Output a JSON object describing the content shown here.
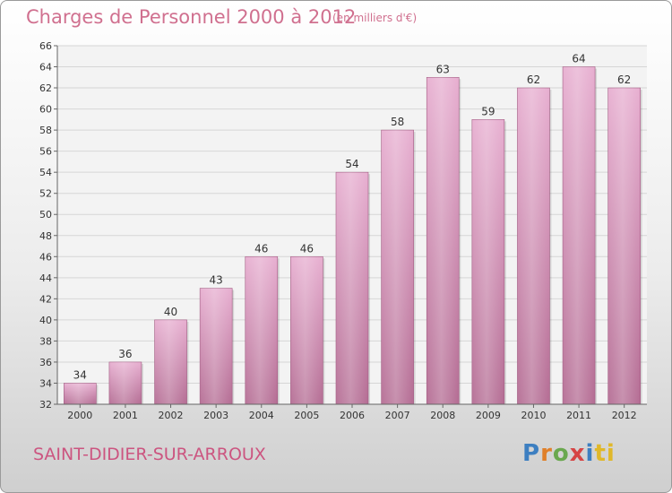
{
  "header": {
    "title": "Charges de Personnel 2000 à 2012",
    "subtitle": "(en milliers d'€)"
  },
  "footer": {
    "commune": "SAINT-DIDIER-SUR-ARROUX",
    "logo_letters": [
      "P",
      "r",
      "o",
      "x",
      "i",
      "ti"
    ]
  },
  "colors": {
    "bar": "#d98fb4",
    "bar_light": "#e7aed0",
    "bar_dark": "#b46c93",
    "text_accent": "#d0708f"
  },
  "chart_data": {
    "type": "bar",
    "title": "Charges de Personnel 2000 à 2012",
    "subtitle": "(en milliers d'€)",
    "xlabel": "",
    "ylabel": "",
    "categories": [
      "2000",
      "2001",
      "2002",
      "2003",
      "2004",
      "2005",
      "2006",
      "2007",
      "2008",
      "2009",
      "2010",
      "2011",
      "2012"
    ],
    "values": [
      34,
      36,
      40,
      43,
      46,
      46,
      54,
      58,
      63,
      59,
      62,
      64,
      62
    ],
    "ylim": [
      32,
      66
    ],
    "yticks": [
      32,
      34,
      36,
      38,
      40,
      42,
      44,
      46,
      48,
      50,
      52,
      54,
      56,
      58,
      60,
      62,
      64,
      66
    ],
    "grid": true,
    "data_labels": true
  }
}
